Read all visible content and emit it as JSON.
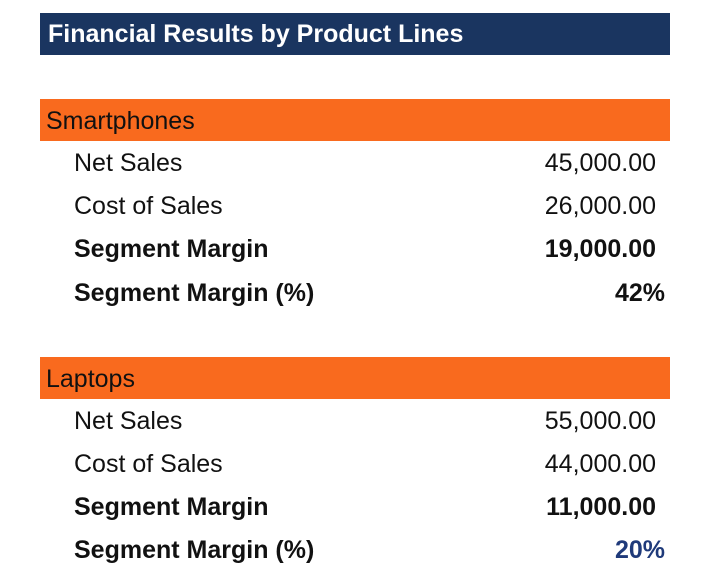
{
  "header": {
    "title": "Financial Results by Product Lines"
  },
  "sections": [
    {
      "name": "Smartphones",
      "rows": [
        {
          "label": "Net Sales",
          "value": "45,000.00"
        },
        {
          "label": "Cost of Sales",
          "value": "26,000.00"
        },
        {
          "label": "Segment Margin",
          "value": "19,000.00"
        },
        {
          "label": "Segment Margin (%)",
          "value": "42%"
        }
      ]
    },
    {
      "name": "Laptops",
      "rows": [
        {
          "label": "Net Sales",
          "value": "55,000.00"
        },
        {
          "label": "Cost of Sales",
          "value": "44,000.00"
        },
        {
          "label": "Segment Margin",
          "value": "11,000.00"
        },
        {
          "label": "Segment Margin (%)",
          "value": "20%"
        }
      ]
    }
  ]
}
